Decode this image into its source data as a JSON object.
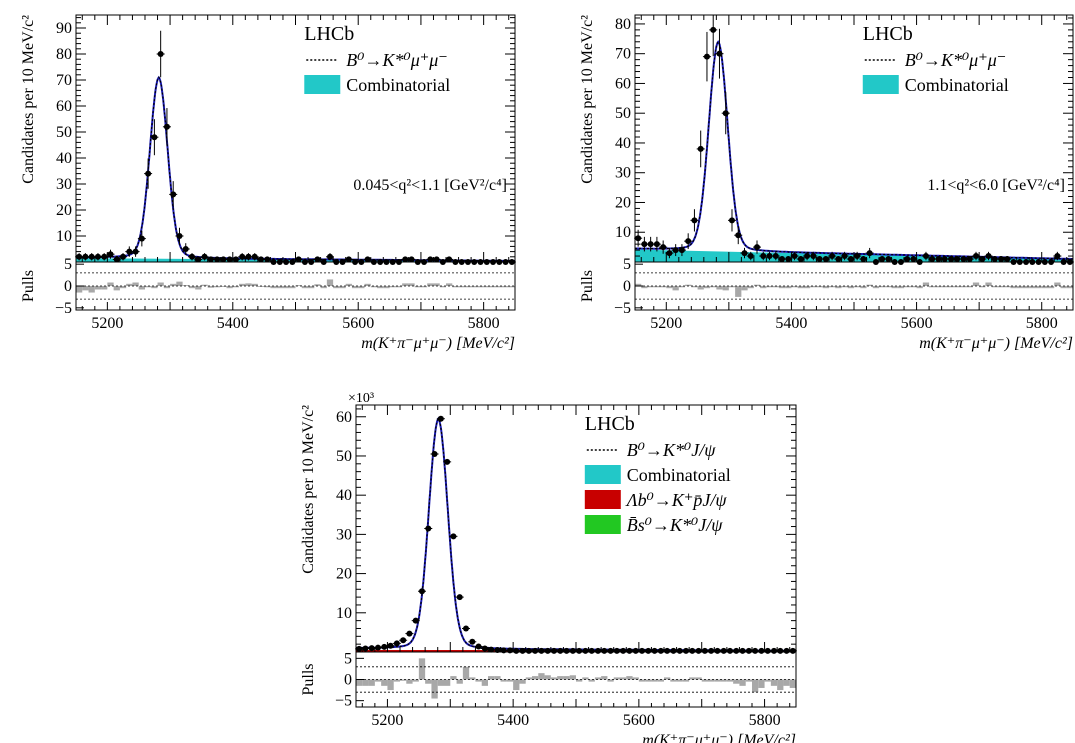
{
  "figure": {
    "x_axis_label": "m(K⁺π⁻μ⁺μ⁻) [MeV/c²]",
    "y_axis_label": "Candidates per 10 MeV/c²",
    "pulls_label": "Pulls",
    "experiment_label": "LHCb",
    "colors": {
      "fit": "#1a1ab4",
      "signal": "#000000",
      "combinatorial": "#22c8c8",
      "lambda_b": "#c80000",
      "bs": "#22c822",
      "pulls": "#a8a8a8",
      "data": "#000000"
    }
  },
  "chart_data": [
    {
      "type": "histogram-fit",
      "panel": "top-left",
      "x_range": [
        5150,
        5850
      ],
      "y_range": [
        0,
        95
      ],
      "x_ticks": [
        5200,
        5400,
        5600,
        5800
      ],
      "x_tick_labels": [
        "5200",
        "5400",
        "5600",
        "5800"
      ],
      "y_ticks": [
        10,
        20,
        30,
        40,
        50,
        60,
        70,
        80,
        90
      ],
      "y_tick_labels": [
        "10",
        "20",
        "30",
        "40",
        "50",
        "60",
        "70",
        "80",
        "90"
      ],
      "y_multiplier": "",
      "pull_range": [
        -5.5,
        5.5
      ],
      "pull_ticks": [
        -5,
        0,
        5
      ],
      "pull_tick_labels": [
        "−5",
        "0",
        "5"
      ],
      "annotation": "0.045<q²<1.1 [GeV²/c⁴]",
      "legend": [
        {
          "style": "dotted",
          "label": "B⁰→K*⁰μ⁺μ⁻"
        },
        {
          "style": "box",
          "color_key": "combinatorial",
          "label": "Combinatorial"
        }
      ],
      "fit": {
        "peak_x": 5282,
        "peak_y": 71,
        "width": 14,
        "bkg_start": 1.8,
        "bkg_end": 0.4
      },
      "combinatorial": {
        "start": 1.5,
        "end": 0.3
      },
      "data_x": [
        5155,
        5165,
        5175,
        5185,
        5195,
        5205,
        5215,
        5225,
        5235,
        5245,
        5255,
        5265,
        5275,
        5285,
        5295,
        5305,
        5315,
        5325,
        5335,
        5345,
        5355,
        5365,
        5375,
        5385,
        5395,
        5405,
        5415,
        5425,
        5435,
        5445,
        5455,
        5465,
        5475,
        5485,
        5495,
        5505,
        5515,
        5525,
        5535,
        5545,
        5555,
        5565,
        5575,
        5585,
        5595,
        5605,
        5615,
        5625,
        5635,
        5645,
        5655,
        5665,
        5675,
        5685,
        5695,
        5705,
        5715,
        5725,
        5735,
        5745,
        5755,
        5765,
        5775,
        5785,
        5795,
        5805,
        5815,
        5825,
        5835,
        5845
      ],
      "data_y": [
        2,
        2,
        2,
        2,
        2,
        3,
        1,
        2,
        4,
        4,
        9,
        34,
        48,
        80,
        52,
        26,
        10,
        5,
        2,
        1,
        2,
        1,
        1,
        1,
        1,
        1,
        2,
        2,
        2,
        1,
        1,
        0,
        0,
        0,
        0,
        1,
        0,
        0,
        1,
        0,
        2,
        0,
        0,
        1,
        0,
        0,
        1,
        0,
        0,
        0,
        0,
        0,
        1,
        1,
        0,
        0,
        1,
        1,
        0,
        1,
        0,
        0,
        0,
        0,
        0,
        0,
        0,
        0,
        0,
        0
      ],
      "pulls": [
        -1.5,
        -1.0,
        -1.5,
        -0.8,
        -0.8,
        0.8,
        -1.0,
        -0.5,
        0.5,
        0.8,
        -0.8,
        -0.3,
        -0.5,
        0.8,
        -0.5,
        0.5,
        1.0,
        0.2,
        -0.5,
        -0.8,
        0.3,
        -0.4,
        -0.3,
        -0.2,
        -0.5,
        -0.3,
        0.5,
        0.6,
        0.5,
        -0.2,
        -0.3,
        -0.5,
        -0.5,
        -0.5,
        -0.5,
        0.2,
        -0.5,
        -0.5,
        0.4,
        -0.5,
        1.5,
        -0.5,
        -0.5,
        0.5,
        -0.5,
        -0.5,
        0.5,
        -0.3,
        -0.5,
        -0.5,
        -0.3,
        -0.3,
        0.6,
        0.6,
        -0.3,
        -0.3,
        0.6,
        0.6,
        -0.3,
        0.6,
        -0.3,
        -0.3,
        -0.3,
        -0.3,
        -0.3,
        -0.3,
        -0.3,
        -0.3,
        -0.3,
        -0.3
      ]
    },
    {
      "type": "histogram-fit",
      "panel": "top-right",
      "x_range": [
        5150,
        5850
      ],
      "y_range": [
        0,
        83
      ],
      "x_ticks": [
        5200,
        5400,
        5600,
        5800
      ],
      "x_tick_labels": [
        "5200",
        "5400",
        "5600",
        "5800"
      ],
      "y_ticks": [
        10,
        20,
        30,
        40,
        50,
        60,
        70,
        80
      ],
      "y_tick_labels": [
        "10",
        "20",
        "30",
        "40",
        "50",
        "60",
        "70",
        "80"
      ],
      "y_multiplier": "",
      "pull_range": [
        -5.5,
        5.5
      ],
      "pull_ticks": [
        -5,
        0,
        5
      ],
      "pull_tick_labels": [
        "−5",
        "0",
        "5"
      ],
      "annotation": "1.1<q²<6.0 [GeV²/c⁴]",
      "legend": [
        {
          "style": "dotted",
          "label": "B⁰→K*⁰μ⁺μ⁻"
        },
        {
          "style": "box",
          "color_key": "combinatorial",
          "label": "Combinatorial"
        }
      ],
      "fit": {
        "peak_x": 5283,
        "peak_y": 74,
        "width": 15,
        "bkg_start": 4.5,
        "bkg_end": 1.0
      },
      "combinatorial": {
        "start": 4.2,
        "end": 0.8
      },
      "data_x": [
        5155,
        5165,
        5175,
        5185,
        5195,
        5205,
        5215,
        5225,
        5235,
        5245,
        5255,
        5265,
        5275,
        5285,
        5295,
        5305,
        5315,
        5325,
        5335,
        5345,
        5355,
        5365,
        5375,
        5385,
        5395,
        5405,
        5415,
        5425,
        5435,
        5445,
        5455,
        5465,
        5475,
        5485,
        5495,
        5505,
        5515,
        5525,
        5535,
        5545,
        5555,
        5565,
        5575,
        5585,
        5595,
        5605,
        5615,
        5625,
        5635,
        5645,
        5655,
        5665,
        5675,
        5685,
        5695,
        5705,
        5715,
        5725,
        5735,
        5745,
        5755,
        5765,
        5775,
        5785,
        5795,
        5805,
        5815,
        5825,
        5835,
        5845
      ],
      "data_y": [
        8,
        6,
        6,
        6,
        5,
        3,
        4,
        4,
        7,
        14,
        38,
        69,
        78,
        70,
        50,
        14,
        9,
        3,
        2,
        5,
        2,
        2,
        2,
        1,
        1,
        2,
        1,
        2,
        2,
        1,
        1,
        2,
        1,
        2,
        1,
        2,
        1,
        3,
        0,
        1,
        1,
        0,
        0,
        1,
        1,
        0,
        2,
        1,
        1,
        1,
        1,
        1,
        1,
        1,
        2,
        1,
        2,
        1,
        1,
        1,
        0,
        0,
        0,
        0,
        0,
        0,
        0,
        2,
        0,
        0
      ],
      "pulls": [
        0.5,
        -0.5,
        -0.3,
        -0.3,
        -0.3,
        -0.5,
        -1.0,
        -0.3,
        0.3,
        -0.3,
        -0.8,
        -0.5,
        -0.3,
        -0.8,
        -1.0,
        -0.3,
        -2.5,
        -1.0,
        -0.5,
        0.3,
        -0.5,
        -0.3,
        -0.3,
        -0.5,
        -0.5,
        -0.3,
        -0.5,
        -0.5,
        -0.3,
        -0.3,
        -0.5,
        -0.3,
        -0.5,
        -0.3,
        -0.5,
        -0.3,
        -0.5,
        0.3,
        -0.5,
        -0.3,
        -0.3,
        -0.5,
        -0.5,
        -0.3,
        -0.3,
        -0.5,
        0.8,
        -0.3,
        -0.3,
        -0.3,
        -0.3,
        -0.3,
        -0.3,
        -0.3,
        0.8,
        -0.3,
        0.8,
        -0.3,
        -0.3,
        -0.3,
        -0.5,
        -0.5,
        -0.5,
        -0.5,
        -0.5,
        -0.5,
        -0.5,
        0.8,
        -0.5,
        -0.5
      ]
    },
    {
      "type": "histogram-fit",
      "panel": "bottom-center",
      "x_range": [
        5150,
        5850
      ],
      "y_range": [
        0,
        63
      ],
      "x_ticks": [
        5200,
        5400,
        5600,
        5800
      ],
      "x_tick_labels": [
        "5200",
        "5400",
        "5600",
        "5800"
      ],
      "y_ticks": [
        10,
        20,
        30,
        40,
        50,
        60
      ],
      "y_tick_labels": [
        "10",
        "20",
        "30",
        "40",
        "50",
        "60"
      ],
      "y_multiplier": "×10³",
      "pull_range": [
        -6.5,
        6.5
      ],
      "pull_ticks": [
        -5,
        0,
        5
      ],
      "pull_tick_labels": [
        "−5",
        "0",
        "5"
      ],
      "annotation": "",
      "legend": [
        {
          "style": "dotted",
          "label": "B⁰→K*⁰J/ψ"
        },
        {
          "style": "box",
          "color_key": "combinatorial",
          "label": "Combinatorial"
        },
        {
          "style": "box",
          "color_key": "lambda_b",
          "label": "Λb⁰→K⁺p̄J/ψ"
        },
        {
          "style": "box",
          "color_key": "bs",
          "label": "B̄s⁰→K*⁰J/ψ"
        }
      ],
      "fit": {
        "peak_x": 5281,
        "peak_y": 59.5,
        "width": 15,
        "bkg_start": 1.0,
        "bkg_end": 0.3
      },
      "combinatorial": {
        "start": 0.4,
        "end": 0.1
      },
      "data_x": [
        5155,
        5165,
        5175,
        5185,
        5195,
        5205,
        5215,
        5225,
        5235,
        5245,
        5255,
        5265,
        5275,
        5285,
        5295,
        5305,
        5315,
        5325,
        5335,
        5345,
        5355,
        5365,
        5375,
        5385,
        5395,
        5405,
        5415,
        5425,
        5435,
        5445,
        5455,
        5465,
        5475,
        5485,
        5495,
        5505,
        5515,
        5525,
        5535,
        5545,
        5555,
        5565,
        5575,
        5585,
        5595,
        5605,
        5615,
        5625,
        5635,
        5645,
        5655,
        5665,
        5675,
        5685,
        5695,
        5705,
        5715,
        5725,
        5735,
        5745,
        5755,
        5765,
        5775,
        5785,
        5795,
        5805,
        5815,
        5825,
        5835,
        5845
      ],
      "data_y": [
        0.8,
        0.9,
        1.0,
        1.1,
        1.3,
        1.6,
        2.2,
        3.0,
        4.7,
        8.0,
        15.5,
        31.5,
        50.5,
        59.5,
        48.5,
        29.5,
        14.0,
        6.0,
        2.6,
        1.4,
        0.9,
        0.6,
        0.5,
        0.4,
        0.4,
        0.3,
        0.3,
        0.3,
        0.3,
        0.3,
        0.3,
        0.3,
        0.3,
        0.3,
        0.3,
        0.3,
        0.3,
        0.3,
        0.3,
        0.3,
        0.3,
        0.3,
        0.3,
        0.3,
        0.3,
        0.3,
        0.3,
        0.3,
        0.3,
        0.3,
        0.3,
        0.3,
        0.3,
        0.3,
        0.3,
        0.3,
        0.3,
        0.3,
        0.3,
        0.3,
        0.3,
        0.3,
        0.3,
        0.3,
        0.3,
        0.3,
        0.3,
        0.3,
        0.3,
        0.3
      ],
      "pulls": [
        -1.5,
        -1.5,
        -1.5,
        -0.5,
        -1.5,
        -2.5,
        -0.5,
        -0.3,
        -1.0,
        -0.5,
        5.0,
        -1.0,
        -4.5,
        -1.5,
        -1.5,
        0.8,
        -1.0,
        3.0,
        0.5,
        -0.5,
        -1.5,
        0.8,
        0.8,
        -0.5,
        -0.5,
        -2.5,
        -1.0,
        0.5,
        0.8,
        1.5,
        1.0,
        0.5,
        0.8,
        0.8,
        1.0,
        -0.5,
        0.5,
        -0.5,
        0.5,
        0.8,
        -0.5,
        0.5,
        0.5,
        0.8,
        0.5,
        -0.5,
        -0.5,
        -0.5,
        -0.5,
        0.5,
        -0.5,
        -0.5,
        -0.5,
        0.5,
        0.5,
        -0.5,
        -0.5,
        -0.5,
        -0.5,
        -0.5,
        -1.0,
        -1.5,
        -0.5,
        -3.0,
        -2.0,
        -0.5,
        -1.5,
        -2.5,
        -1.5,
        -2.0
      ]
    }
  ]
}
